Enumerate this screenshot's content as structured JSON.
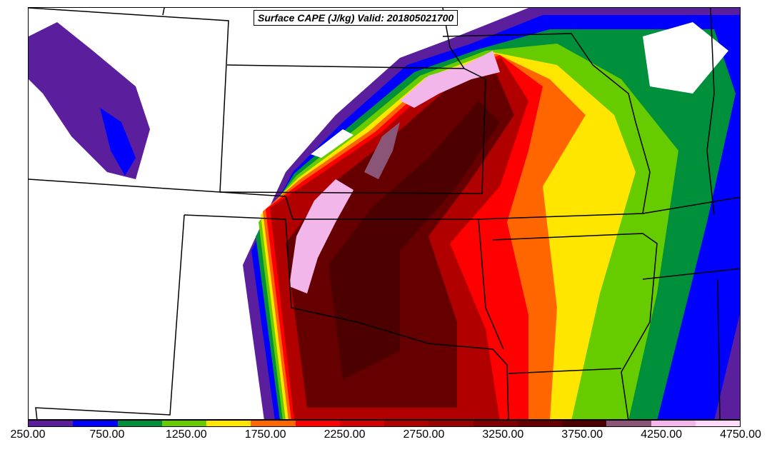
{
  "title": "Surface CAPE (J/kg) Valid: 201805021700",
  "colorbar": {
    "levels": [
      "#5b1f9e",
      "#0000ff",
      "#008f3a",
      "#66cc00",
      "#ffe600",
      "#ff6600",
      "#ff0000",
      "#d40000",
      "#b00000",
      "#990000",
      "#7f0000",
      "#660000",
      "#4d0000",
      "#8b5577",
      "#f2b6ea",
      "#ffd9f7"
    ],
    "tick_labels": [
      "250.00",
      "750.00",
      "1250.00",
      "1750.00",
      "2250.00",
      "2750.00",
      "3250.00",
      "3750.00",
      "4250.00",
      "4750.00"
    ]
  }
}
